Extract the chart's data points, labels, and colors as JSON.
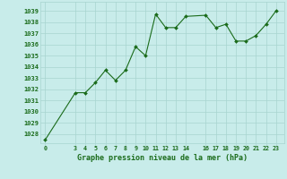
{
  "x": [
    0,
    3,
    4,
    5,
    6,
    7,
    8,
    9,
    10,
    11,
    12,
    13,
    14,
    16,
    17,
    18,
    19,
    20,
    21,
    22,
    23
  ],
  "y": [
    1027.5,
    1031.7,
    1031.7,
    1032.6,
    1033.7,
    1032.8,
    1033.7,
    1035.8,
    1035.0,
    1038.7,
    1037.5,
    1037.5,
    1038.5,
    1038.6,
    1037.5,
    1037.8,
    1036.3,
    1036.3,
    1036.8,
    1037.8,
    1039.0
  ],
  "xticks": [
    0,
    3,
    4,
    5,
    6,
    7,
    8,
    9,
    10,
    11,
    12,
    13,
    14,
    16,
    17,
    18,
    19,
    20,
    21,
    22,
    23
  ],
  "xtick_labels": [
    "0",
    "3",
    "4",
    "5",
    "6",
    "7",
    "8",
    "9",
    "10",
    "11",
    "12",
    "13",
    "14",
    "16",
    "17",
    "18",
    "19",
    "20",
    "21",
    "22",
    "23"
  ],
  "yticks": [
    1028,
    1029,
    1030,
    1031,
    1032,
    1033,
    1034,
    1035,
    1036,
    1037,
    1038,
    1039
  ],
  "ylim": [
    1027.2,
    1039.8
  ],
  "xlim": [
    -0.5,
    23.8
  ],
  "xlabel": "Graphe pression niveau de la mer (hPa)",
  "line_color": "#1a6b1a",
  "marker_color": "#1a6b1a",
  "bg_color": "#c8ecea",
  "grid_color": "#a8d4d0",
  "tick_color": "#1a6b1a",
  "xlabel_color": "#1a6b1a"
}
